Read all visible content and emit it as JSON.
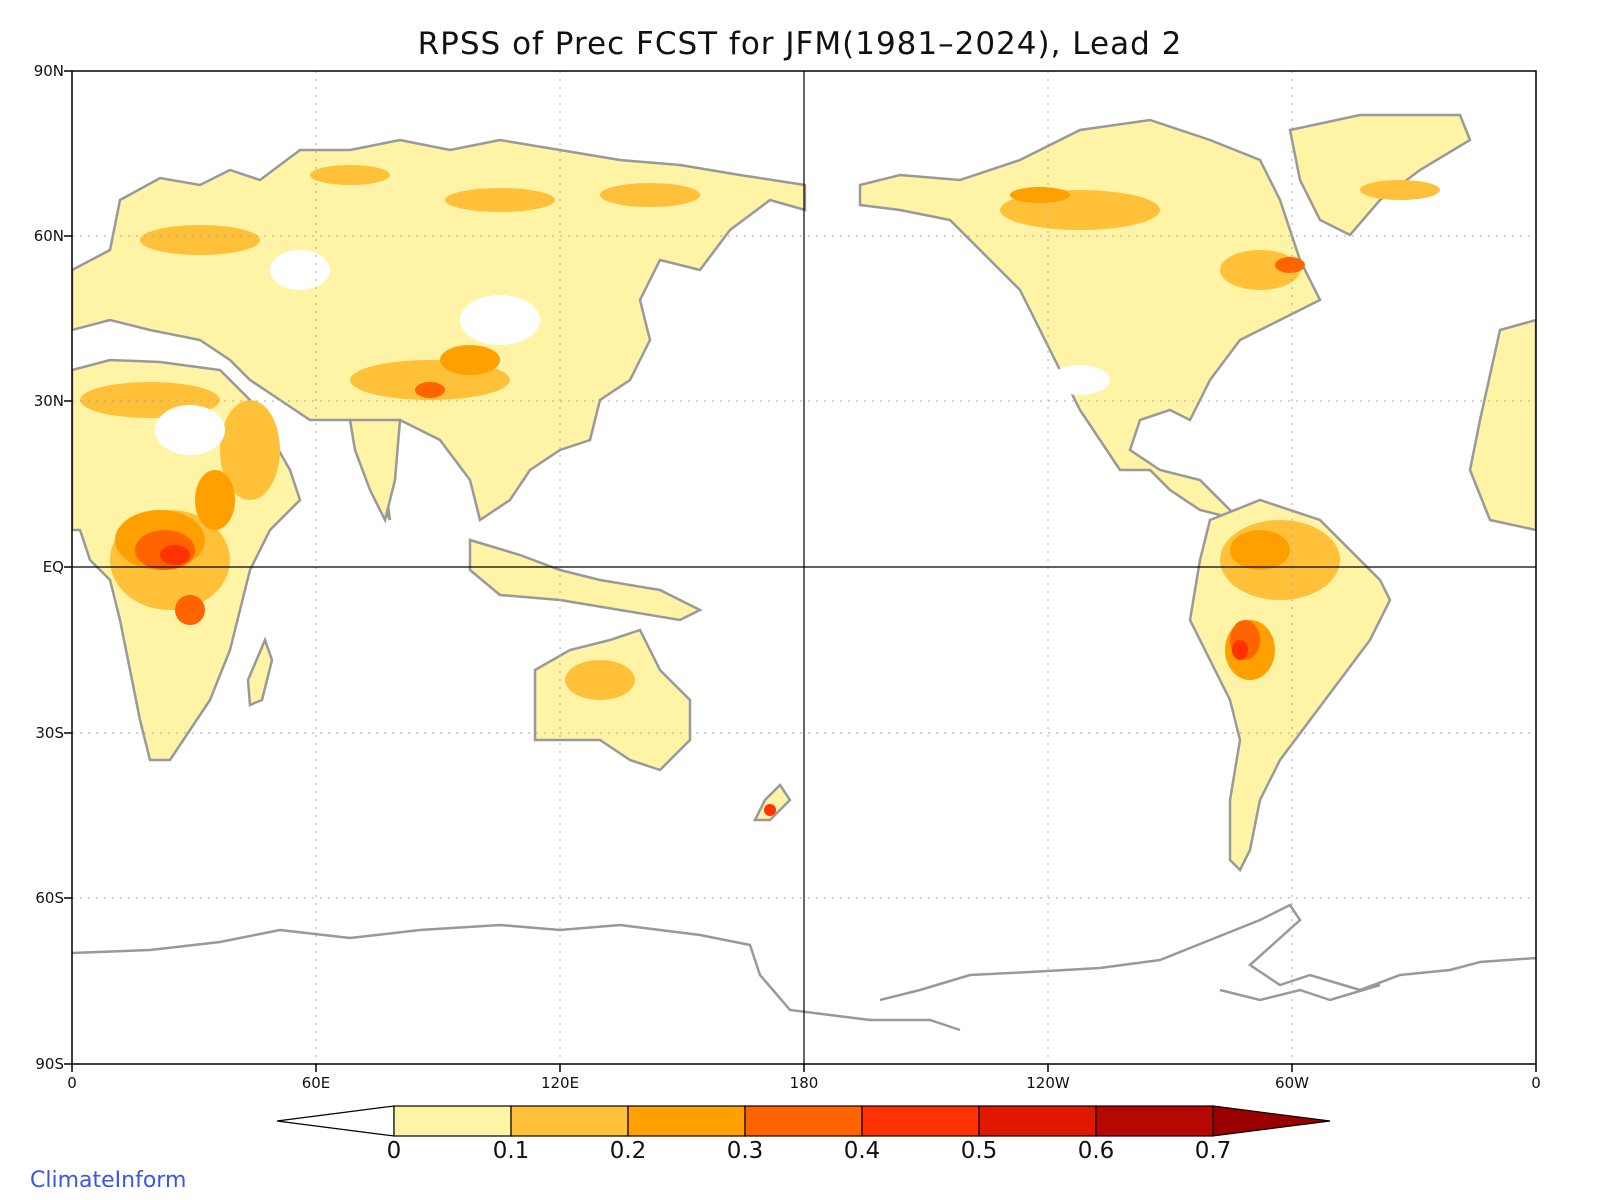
{
  "title": "RPSS of Prec FCST for JFM(1981–2024), Lead 2",
  "credit": "ClimateInform",
  "lat_labels": [
    "90N",
    "60N",
    "30N",
    "EQ",
    "30S",
    "60S",
    "90S"
  ],
  "lon_labels": [
    "0",
    "60E",
    "120E",
    "180",
    "120W",
    "60W",
    "0"
  ],
  "colorbar": {
    "labels": [
      "0",
      "0.1",
      "0.2",
      "0.3",
      "0.4",
      "0.5",
      "0.6",
      "0.7"
    ],
    "colors": [
      "#ffffff",
      "#fff3a6",
      "#ffc13a",
      "#ffa000",
      "#ff6400",
      "#ff3200",
      "#e01800",
      "#b40800",
      "#9a0000"
    ]
  },
  "style": {
    "coast_color": "#999999",
    "lakes_color": "#000000",
    "grid_color": "#aaaaaa"
  }
}
